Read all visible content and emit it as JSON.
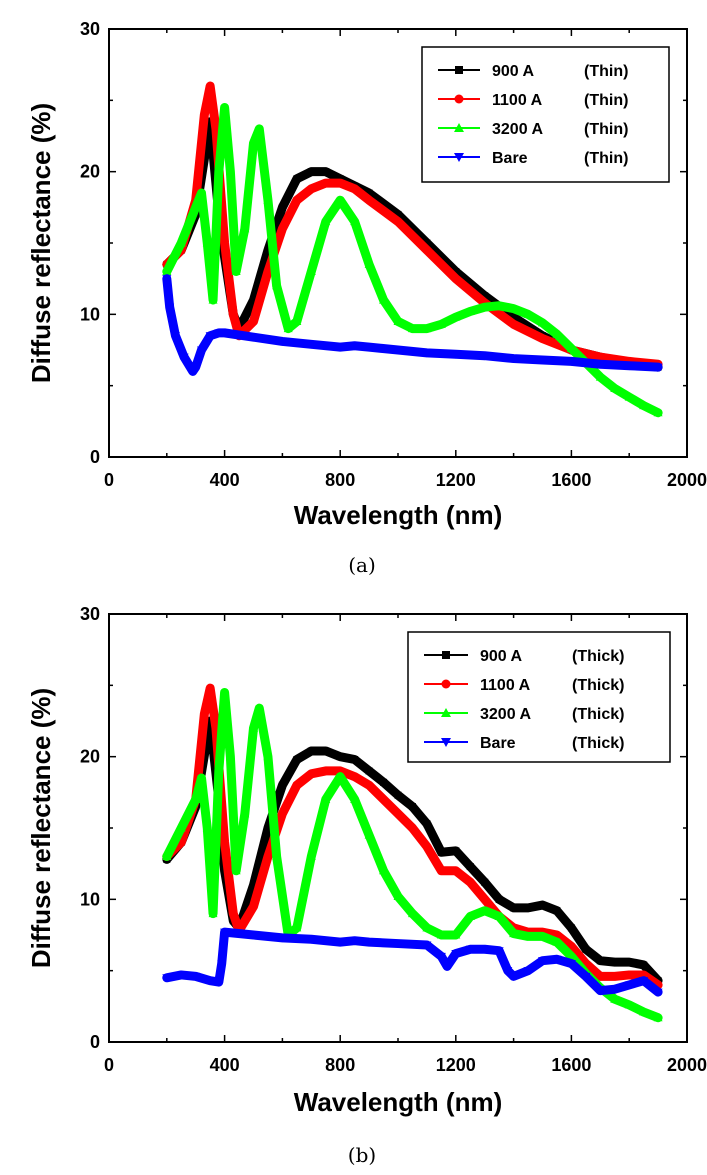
{
  "chart_data": [
    {
      "type": "line",
      "caption": "(a)",
      "xlabel": "Wavelength (nm)",
      "ylabel": "Diffuse reflectance (%)",
      "xlim": [
        0,
        2000
      ],
      "ylim": [
        0,
        30
      ],
      "xticks": [
        0,
        400,
        800,
        1200,
        1600,
        2000
      ],
      "yticks": [
        0,
        10,
        20,
        30
      ],
      "legend_position": "top-right",
      "grid": false,
      "series": [
        {
          "name": "900 A",
          "suffix": "(Thin)",
          "color": "#000000",
          "marker": "square",
          "x": [
            200,
            250,
            300,
            350,
            380,
            400,
            430,
            450,
            500,
            550,
            600,
            650,
            700,
            750,
            800,
            850,
            900,
            1000,
            1100,
            1200,
            1300,
            1400,
            1500,
            1600,
            1700,
            1800,
            1900
          ],
          "y": [
            13.5,
            14.5,
            17,
            23.5,
            17,
            14,
            10,
            9,
            11,
            14.5,
            17.5,
            19.5,
            20,
            20,
            19.5,
            19,
            18.5,
            17,
            15,
            13,
            11.3,
            9.8,
            8.5,
            7.5,
            7,
            6.6,
            6.3
          ]
        },
        {
          "name": "1100 A",
          "suffix": "(Thin)",
          "color": "#ff0000",
          "marker": "circle",
          "x": [
            200,
            250,
            300,
            330,
            350,
            370,
            400,
            430,
            450,
            500,
            550,
            600,
            650,
            700,
            750,
            800,
            850,
            900,
            1000,
            1100,
            1200,
            1300,
            1400,
            1500,
            1600,
            1700,
            1800,
            1900
          ],
          "y": [
            13.5,
            14.5,
            18,
            24,
            26,
            23,
            15,
            10,
            8.5,
            9.5,
            13,
            16,
            18,
            18.8,
            19.2,
            19.2,
            18.8,
            18,
            16.5,
            14.5,
            12.5,
            10.8,
            9.3,
            8.3,
            7.5,
            7,
            6.7,
            6.5
          ]
        },
        {
          "name": "3200 A",
          "suffix": "(Thin)",
          "color": "#00ff00",
          "marker": "triangle-up",
          "x": [
            200,
            250,
            300,
            320,
            340,
            360,
            380,
            400,
            420,
            440,
            470,
            500,
            520,
            550,
            580,
            620,
            650,
            700,
            750,
            800,
            850,
            900,
            950,
            1000,
            1050,
            1100,
            1150,
            1200,
            1250,
            1300,
            1350,
            1400,
            1450,
            1500,
            1550,
            1600,
            1650,
            1700,
            1750,
            1800,
            1850,
            1900
          ],
          "y": [
            13,
            15,
            17.5,
            18.5,
            15,
            11,
            20,
            24.5,
            20,
            13,
            16,
            22,
            23,
            18,
            12,
            9,
            9.5,
            13,
            16.5,
            18,
            16.5,
            13.5,
            11,
            9.5,
            9,
            9,
            9.3,
            9.8,
            10.2,
            10.5,
            10.6,
            10.4,
            10,
            9.4,
            8.6,
            7.6,
            6.6,
            5.6,
            4.8,
            4.2,
            3.6,
            3.1
          ]
        },
        {
          "name": "Bare",
          "suffix": "(Thin)",
          "color": "#0000ff",
          "marker": "triangle-down",
          "x": [
            200,
            210,
            230,
            260,
            290,
            300,
            320,
            350,
            380,
            400,
            500,
            600,
            700,
            800,
            850,
            900,
            1000,
            1100,
            1200,
            1300,
            1400,
            1500,
            1600,
            1700,
            1800,
            1900
          ],
          "y": [
            12.5,
            10.5,
            8.5,
            7,
            6,
            6.3,
            7.5,
            8.5,
            8.7,
            8.7,
            8.4,
            8.1,
            7.9,
            7.7,
            7.8,
            7.7,
            7.5,
            7.3,
            7.2,
            7.1,
            6.9,
            6.8,
            6.7,
            6.5,
            6.4,
            6.3
          ]
        }
      ]
    },
    {
      "type": "line",
      "caption": "(b)",
      "xlabel": "Wavelength (nm)",
      "ylabel": "Diffuse reflectance (%)",
      "xlim": [
        0,
        2000
      ],
      "ylim": [
        0,
        30
      ],
      "xticks": [
        0,
        400,
        800,
        1200,
        1600,
        2000
      ],
      "yticks": [
        0,
        10,
        20,
        30
      ],
      "legend_position": "top-right",
      "grid": false,
      "series": [
        {
          "name": "900 A",
          "suffix": "(Thick)",
          "color": "#000000",
          "marker": "square",
          "x": [
            200,
            250,
            300,
            350,
            380,
            400,
            430,
            450,
            500,
            550,
            600,
            650,
            700,
            750,
            800,
            850,
            900,
            950,
            1000,
            1050,
            1100,
            1150,
            1200,
            1250,
            1300,
            1350,
            1400,
            1450,
            1500,
            1550,
            1600,
            1650,
            1700,
            1750,
            1800,
            1850,
            1900
          ],
          "y": [
            12.8,
            14,
            16.5,
            22.5,
            17,
            12,
            8.5,
            8,
            11,
            15,
            18,
            19.8,
            20.4,
            20.4,
            20,
            19.8,
            19,
            18.2,
            17.3,
            16.5,
            15.3,
            13.3,
            13.4,
            12.3,
            11.2,
            10,
            9.4,
            9.4,
            9.6,
            9.2,
            8,
            6.5,
            5.7,
            5.6,
            5.6,
            5.4,
            4.3
          ]
        },
        {
          "name": "1100 A",
          "suffix": "(Thick)",
          "color": "#ff0000",
          "marker": "circle",
          "x": [
            200,
            250,
            300,
            330,
            350,
            370,
            400,
            430,
            450,
            500,
            550,
            600,
            650,
            700,
            750,
            800,
            850,
            900,
            950,
            1000,
            1050,
            1100,
            1150,
            1200,
            1250,
            1300,
            1350,
            1400,
            1450,
            1500,
            1550,
            1600,
            1650,
            1700,
            1750,
            1800,
            1850,
            1900
          ],
          "y": [
            13,
            14,
            17,
            23,
            24.8,
            22,
            14,
            9,
            7.8,
            9.5,
            13,
            16,
            18,
            18.8,
            19,
            19,
            18.6,
            18,
            17,
            16,
            15,
            13.7,
            12,
            12,
            11.2,
            10,
            8.8,
            8,
            7.7,
            7.7,
            7.5,
            6.7,
            5.5,
            4.6,
            4.6,
            4.7,
            4.7,
            4
          ]
        },
        {
          "name": "3200 A",
          "suffix": "(Thick)",
          "color": "#00ff00",
          "marker": "triangle-up",
          "x": [
            200,
            250,
            300,
            320,
            340,
            360,
            380,
            400,
            420,
            440,
            470,
            500,
            520,
            550,
            580,
            620,
            650,
            700,
            750,
            800,
            850,
            900,
            950,
            1000,
            1050,
            1100,
            1150,
            1200,
            1250,
            1300,
            1350,
            1400,
            1450,
            1500,
            1550,
            1600,
            1650,
            1700,
            1750,
            1800,
            1850,
            1900
          ],
          "y": [
            13,
            15,
            17,
            18.5,
            15,
            9,
            19,
            24.5,
            20,
            12,
            16,
            22,
            23.4,
            20,
            13,
            7.5,
            8,
            13,
            17,
            18.6,
            17,
            14.5,
            12,
            10.2,
            9,
            8,
            7.5,
            7.5,
            8.8,
            9.2,
            8.8,
            7.6,
            7.4,
            7.4,
            7,
            6,
            4.8,
            3.8,
            3,
            2.6,
            2.1,
            1.7
          ]
        },
        {
          "name": "Bare",
          "suffix": "(Thick)",
          "color": "#0000ff",
          "marker": "triangle-down",
          "x": [
            200,
            250,
            300,
            350,
            380,
            390,
            400,
            500,
            600,
            700,
            800,
            850,
            900,
            1000,
            1100,
            1150,
            1170,
            1200,
            1250,
            1300,
            1350,
            1380,
            1400,
            1450,
            1500,
            1550,
            1600,
            1650,
            1700,
            1750,
            1800,
            1850,
            1900
          ],
          "y": [
            4.5,
            4.7,
            4.6,
            4.3,
            4.2,
            5.5,
            7.7,
            7.5,
            7.3,
            7.2,
            7,
            7.1,
            7,
            6.9,
            6.8,
            6,
            5.3,
            6.2,
            6.5,
            6.5,
            6.4,
            5,
            4.6,
            5,
            5.7,
            5.8,
            5.5,
            4.6,
            3.6,
            3.7,
            4,
            4.3,
            3.5
          ]
        }
      ]
    }
  ]
}
